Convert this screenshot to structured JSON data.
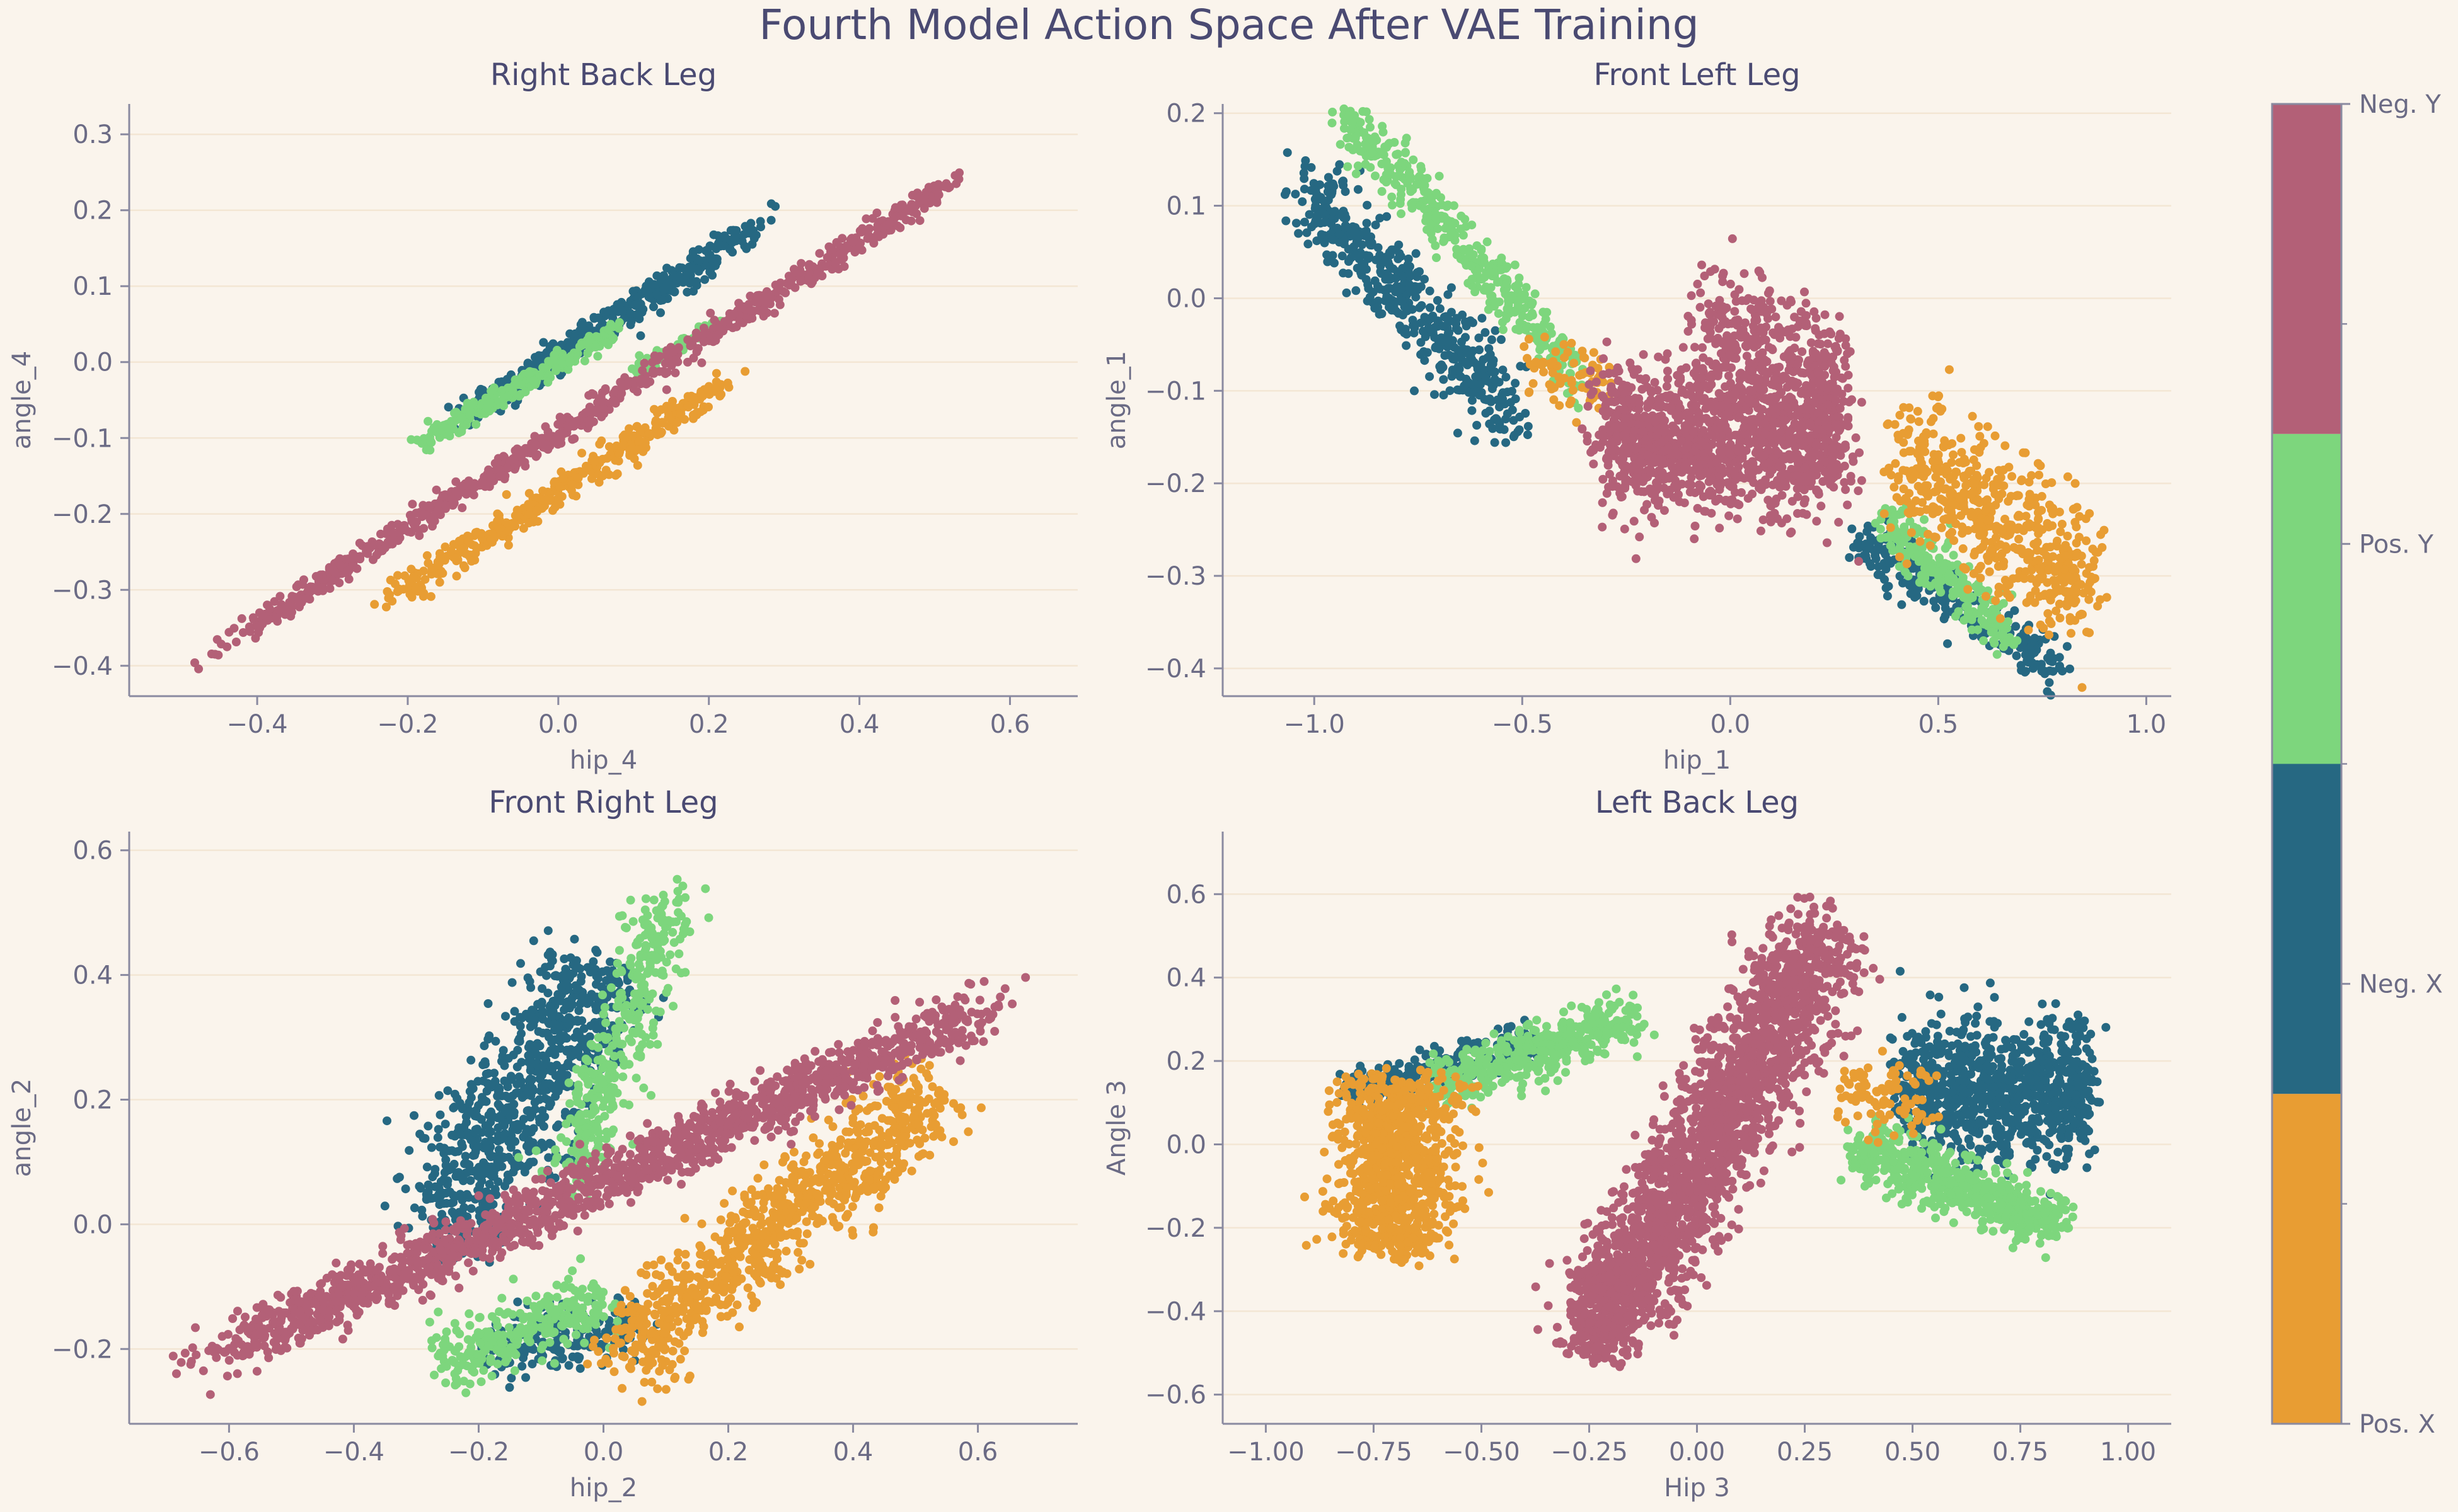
{
  "figure": {
    "title": "Fourth Model Action Space After VAE Training",
    "background": "#faf4ec",
    "colors": {
      "pos_x": "#e89d33",
      "neg_x": "#266882",
      "pos_y": "#7dd67d",
      "neg_y": "#b36077",
      "grid": "#f3e6d4",
      "axis": "#8a8aa0",
      "text": "#6b6b85"
    }
  },
  "colorbar": {
    "type": "categorical-colorbar",
    "labels": [
      "Pos. X",
      "Neg. X",
      "Pos. Y",
      "Neg. Y"
    ],
    "colors": [
      "#e89d33",
      "#266882",
      "#7dd67d",
      "#b36077"
    ]
  },
  "chart_data": [
    {
      "type": "scatter",
      "title": "Right Back Leg",
      "xlabel": "hip_4",
      "ylabel": "angle_4",
      "xlim": [
        -0.57,
        0.69
      ],
      "ylim": [
        -0.44,
        0.34
      ],
      "xticks": [
        -0.4,
        -0.2,
        0.0,
        0.2,
        0.4,
        0.6
      ],
      "yticks": [
        -0.4,
        -0.3,
        -0.2,
        -0.1,
        0.0,
        0.1,
        0.2,
        0.3
      ],
      "xtick_labels": [
        "−0.4",
        "−0.2",
        "0.0",
        "0.2",
        "0.4",
        "0.6"
      ],
      "ytick_labels": [
        "−0.4",
        "−0.3",
        "−0.2",
        "−0.1",
        "0.0",
        "0.1",
        "0.2",
        "0.3"
      ],
      "grid": "horizontal",
      "series": [
        {
          "name": "Neg. X",
          "clusters": [
            {
              "c": [
                0.08,
                0.06
              ],
              "u": [
                1.0,
                0.64
              ],
              "a": 0.25,
              "b": 0.018,
              "n": 400
            }
          ]
        },
        {
          "name": "Pos. Y",
          "clusters": [
            {
              "c": [
                -0.05,
                -0.03
              ],
              "u": [
                1.0,
                0.58
              ],
              "a": 0.16,
              "b": 0.013,
              "n": 240
            },
            {
              "c": [
                0.16,
                0.02
              ],
              "u": [
                1.0,
                0.58
              ],
              "a": 0.07,
              "b": 0.008,
              "n": 70
            }
          ]
        },
        {
          "name": "Pos. X",
          "clusters": [
            {
              "c": [
                0.0,
                -0.17
              ],
              "u": [
                1.0,
                0.63
              ],
              "a": 0.28,
              "b": 0.018,
              "n": 380
            }
          ]
        },
        {
          "name": "Neg. Y",
          "clusters": [
            {
              "c": [
                0.05,
                -0.06
              ],
              "u": [
                1.0,
                0.63
              ],
              "a": 0.6,
              "b": 0.014,
              "n": 800
            }
          ]
        }
      ]
    },
    {
      "type": "scatter",
      "title": "Front Left Leg",
      "xlabel": "hip_1",
      "ylabel": "angle_1",
      "xlim": [
        -1.22,
        1.06
      ],
      "ylim": [
        -0.43,
        0.21
      ],
      "xticks": [
        -1.0,
        -0.5,
        0.0,
        0.5,
        1.0
      ],
      "yticks": [
        -0.4,
        -0.3,
        -0.2,
        -0.1,
        0.0,
        0.1,
        0.2
      ],
      "xtick_labels": [
        "−1.0",
        "−0.5",
        "0.0",
        "0.5",
        "1.0"
      ],
      "ytick_labels": [
        "−0.4",
        "−0.3",
        "−0.2",
        "−0.1",
        "0.0",
        "0.1",
        "0.2"
      ],
      "grid": "horizontal",
      "series": [
        {
          "name": "Neg. X",
          "clusters": [
            {
              "c": [
                -0.78,
                0.0
              ],
              "u": [
                1.0,
                -0.47
              ],
              "a": 0.32,
              "b": 0.045,
              "n": 500
            },
            {
              "c": [
                0.55,
                -0.33
              ],
              "u": [
                1.0,
                -0.28
              ],
              "a": 0.27,
              "b": 0.025,
              "n": 280
            }
          ]
        },
        {
          "name": "Pos. Y",
          "clusters": [
            {
              "c": [
                -0.65,
                0.06
              ],
              "u": [
                1.0,
                -0.5
              ],
              "a": 0.36,
              "b": 0.03,
              "n": 420
            },
            {
              "c": [
                0.52,
                -0.3
              ],
              "u": [
                1.0,
                -0.4
              ],
              "a": 0.18,
              "b": 0.028,
              "n": 220
            }
          ]
        },
        {
          "name": "Pos. X",
          "clusters": [
            {
              "c": [
                0.64,
                -0.24
              ],
              "u": [
                1.0,
                -0.32
              ],
              "a": 0.27,
              "b": 0.07,
              "n": 560
            },
            {
              "c": [
                -0.4,
                -0.08
              ],
              "u": [
                1.0,
                -0.2
              ],
              "a": 0.12,
              "b": 0.04,
              "n": 70
            }
          ]
        },
        {
          "name": "Neg. Y",
          "clusters": [
            {
              "c": [
                -0.02,
                -0.15
              ],
              "u": [
                1.0,
                0.0
              ],
              "a": 0.32,
              "b": 0.075,
              "n": 1400
            },
            {
              "c": [
                0.1,
                -0.05
              ],
              "u": [
                1.0,
                -0.15
              ],
              "a": 0.2,
              "b": 0.06,
              "n": 300
            }
          ]
        }
      ]
    },
    {
      "type": "scatter",
      "title": "Front Right Leg",
      "xlabel": "hip_2",
      "ylabel": "angle_2",
      "xlim": [
        -0.76,
        0.76
      ],
      "ylim": [
        -0.32,
        0.63
      ],
      "xticks": [
        -0.6,
        -0.4,
        -0.2,
        0.0,
        0.2,
        0.4,
        0.6
      ],
      "yticks": [
        -0.2,
        0.0,
        0.2,
        0.4,
        0.6
      ],
      "xtick_labels": [
        "−0.6",
        "−0.4",
        "−0.2",
        "0.0",
        "0.2",
        "0.4",
        "0.6"
      ],
      "ytick_labels": [
        "−0.2",
        "0.0",
        "0.2",
        "0.4",
        "0.6"
      ],
      "grid": "horizontal",
      "series": [
        {
          "name": "Neg. X",
          "clusters": [
            {
              "c": [
                -0.13,
                0.2
              ],
              "u": [
                0.6,
                1.0
              ],
              "a": 0.28,
              "b": 0.085,
              "n": 800
            },
            {
              "c": [
                -0.06,
                -0.18
              ],
              "u": [
                1.0,
                0.2
              ],
              "a": 0.14,
              "b": 0.045,
              "n": 200
            }
          ]
        },
        {
          "name": "Pos. Y",
          "clusters": [
            {
              "c": [
                0.03,
                0.3
              ],
              "u": [
                0.35,
                1.0
              ],
              "a": 0.27,
              "b": 0.045,
              "n": 360
            },
            {
              "c": [
                -0.13,
                -0.17
              ],
              "u": [
                1.0,
                0.35
              ],
              "a": 0.16,
              "b": 0.045,
              "n": 280
            }
          ]
        },
        {
          "name": "Pos. X",
          "clusters": [
            {
              "c": [
                0.28,
                0.0
              ],
              "u": [
                1.0,
                0.85
              ],
              "a": 0.36,
              "b": 0.07,
              "n": 900
            }
          ]
        },
        {
          "name": "Neg. Y",
          "clusters": [
            {
              "c": [
                0.0,
                0.07
              ],
              "u": [
                1.0,
                0.45
              ],
              "a": 0.72,
              "b": 0.04,
              "n": 1600
            }
          ]
        }
      ]
    },
    {
      "type": "scatter",
      "title": "Left Back Leg",
      "xlabel": "Hip 3",
      "ylabel": "Angle 3",
      "xlim": [
        -1.1,
        1.1
      ],
      "ylim": [
        -0.67,
        0.75
      ],
      "xticks": [
        -1.0,
        -0.75,
        -0.5,
        -0.25,
        0.0,
        0.25,
        0.5,
        0.75,
        1.0
      ],
      "yticks": [
        -0.6,
        -0.4,
        -0.2,
        0.0,
        0.2,
        0.4,
        0.6
      ],
      "xtick_labels": [
        "−1.00",
        "−0.75",
        "−0.50",
        "−0.25",
        "0.00",
        "0.25",
        "0.50",
        "0.75",
        "1.00"
      ],
      "ytick_labels": [
        "−0.6",
        "−0.4",
        "−0.2",
        "0.0",
        "0.2",
        "0.4",
        "0.6"
      ],
      "grid": "horizontal",
      "series": [
        {
          "name": "Neg. X",
          "clusters": [
            {
              "c": [
                0.7,
                0.12
              ],
              "u": [
                1.0,
                0.0
              ],
              "a": 0.24,
              "b": 0.15,
              "n": 900
            },
            {
              "c": [
                -0.6,
                0.18
              ],
              "u": [
                1.0,
                0.3
              ],
              "a": 0.25,
              "b": 0.05,
              "n": 250
            }
          ]
        },
        {
          "name": "Pos. Y",
          "clusters": [
            {
              "c": [
                -0.38,
                0.22
              ],
              "u": [
                1.0,
                0.35
              ],
              "a": 0.27,
              "b": 0.06,
              "n": 420
            },
            {
              "c": [
                0.6,
                -0.1
              ],
              "u": [
                1.0,
                -0.4
              ],
              "a": 0.28,
              "b": 0.06,
              "n": 600
            }
          ]
        },
        {
          "name": "Pos. X",
          "clusters": [
            {
              "c": [
                -0.7,
                -0.05
              ],
              "u": [
                0.0,
                1.0
              ],
              "a": 0.23,
              "b": 0.13,
              "n": 900
            },
            {
              "c": [
                0.45,
                0.12
              ],
              "u": [
                1.0,
                0.0
              ],
              "a": 0.12,
              "b": 0.08,
              "n": 90
            }
          ]
        },
        {
          "name": "Neg. Y",
          "clusters": [
            {
              "c": [
                0.05,
                0.05
              ],
              "u": [
                0.55,
                1.0
              ],
              "a": 0.58,
              "b": 0.11,
              "n": 2000
            },
            {
              "c": [
                -0.22,
                -0.4
              ],
              "u": [
                0.25,
                1.0
              ],
              "a": 0.12,
              "b": 0.08,
              "n": 300
            }
          ]
        }
      ]
    }
  ]
}
